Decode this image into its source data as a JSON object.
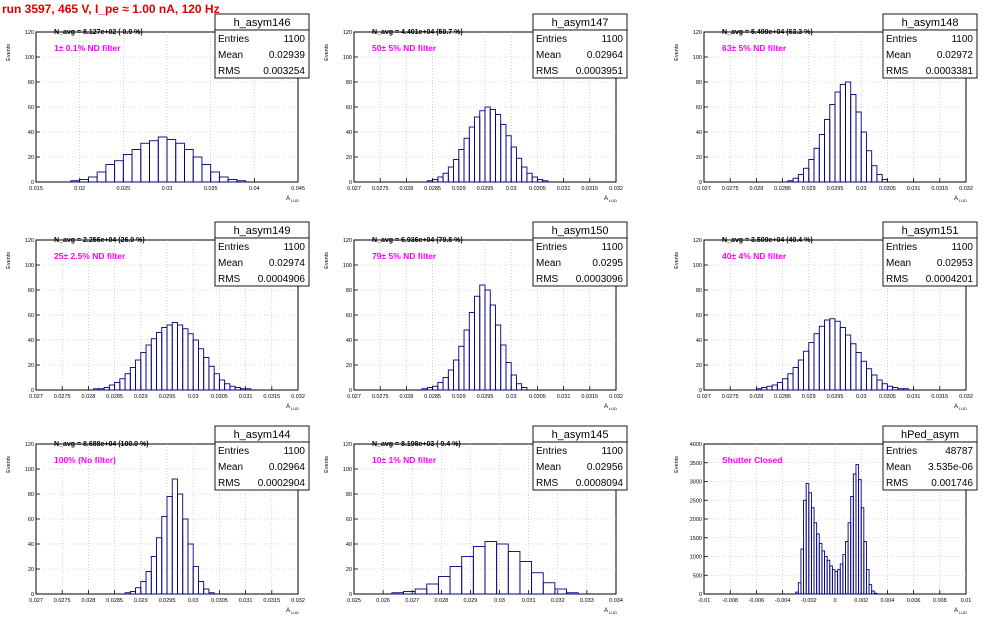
{
  "header": {
    "run_title": "run 3597,   465 V, I_pe ≈ 1.00 nA, 120 Hz"
  },
  "stats_labels": {
    "entries": "Entries",
    "mean": "Mean",
    "rms": "RMS"
  },
  "y_axis_title": "Events",
  "x_axis_title": "A",
  "x_axis_subscript": "LUD",
  "colors": {
    "histogram": "#000080",
    "annotation": "#ff00ff",
    "grid": "#b4b4b4",
    "title_red": "#e00000"
  },
  "chart_data": [
    {
      "type": "bar",
      "name": "h_asym146",
      "entries": "1100",
      "mean": "0.02939",
      "rms": "0.003254",
      "navg": "N_avg = 8.127e+02 ( 0.9 %)",
      "filter": "1± 0.1% ND filter",
      "xlim": [
        0.015,
        0.045
      ],
      "ylim": [
        0,
        120
      ],
      "xticks": [
        "0.015",
        "0.02",
        "0.025",
        "0.03",
        "0.035",
        "0.04",
        "0.045"
      ],
      "yticks": [
        "0",
        "20",
        "40",
        "60",
        "80",
        "100",
        "120"
      ],
      "bin_centers": [
        0.0155,
        0.0165,
        0.0175,
        0.0185,
        0.0195,
        0.0205,
        0.0215,
        0.0225,
        0.0235,
        0.0245,
        0.0255,
        0.0265,
        0.0275,
        0.0285,
        0.0295,
        0.0305,
        0.0315,
        0.0325,
        0.0335,
        0.0345,
        0.0355,
        0.0365,
        0.0375,
        0.0385,
        0.0395,
        0.0405,
        0.0415,
        0.0425,
        0.0435,
        0.0445
      ],
      "bin_values": [
        0,
        0,
        0,
        0,
        1,
        2,
        4,
        8,
        14,
        17,
        22,
        26,
        31,
        33,
        36,
        34,
        31,
        26,
        20,
        14,
        8,
        4,
        2,
        1,
        0,
        0,
        0,
        0,
        0,
        0
      ]
    },
    {
      "type": "bar",
      "name": "h_asym147",
      "entries": "1100",
      "mean": "0.02964",
      "rms": "0.0003951",
      "navg": "N_avg = 4.401e+04 (50.7 %)",
      "filter": "50± 5% ND filter",
      "xlim": [
        0.027,
        0.032
      ],
      "ylim": [
        0,
        120
      ],
      "xticks": [
        "0.027",
        "0.0275",
        "0.028",
        "0.0285",
        "0.029",
        "0.0295",
        "0.03",
        "0.0305",
        "0.031",
        "0.0315",
        "0.032"
      ],
      "yticks": [
        "0",
        "20",
        "40",
        "60",
        "80",
        "100",
        "120"
      ],
      "bin_centers": [
        0.02845,
        0.02855,
        0.02865,
        0.02875,
        0.02885,
        0.02895,
        0.02905,
        0.02915,
        0.02925,
        0.02935,
        0.02945,
        0.02955,
        0.02965,
        0.02975,
        0.02985,
        0.02995,
        0.03005,
        0.03015,
        0.03025,
        0.03035,
        0.03045,
        0.03055,
        0.03065
      ],
      "bin_values": [
        1,
        2,
        4,
        7,
        12,
        18,
        26,
        35,
        44,
        52,
        57,
        60,
        58,
        54,
        46,
        37,
        28,
        19,
        12,
        7,
        4,
        2,
        1
      ]
    },
    {
      "type": "bar",
      "name": "h_asym148",
      "entries": "1100",
      "mean": "0.02972",
      "rms": "0.0003381",
      "navg": "N_avg = 5.499e+04 (63.3 %)",
      "filter": "63± 5% ND filter",
      "xlim": [
        0.027,
        0.032
      ],
      "ylim": [
        0,
        120
      ],
      "xticks": [
        "0.027",
        "0.0275",
        "0.028",
        "0.0285",
        "0.029",
        "0.0295",
        "0.03",
        "0.0305",
        "0.031",
        "0.0315",
        "0.032"
      ],
      "yticks": [
        "0",
        "20",
        "40",
        "60",
        "80",
        "100",
        "120"
      ],
      "bin_centers": [
        0.02865,
        0.02875,
        0.02885,
        0.02895,
        0.02905,
        0.02915,
        0.02925,
        0.02935,
        0.02945,
        0.02955,
        0.02965,
        0.02975,
        0.02985,
        0.02995,
        0.03005,
        0.03015,
        0.03025,
        0.03035,
        0.03045
      ],
      "bin_values": [
        1,
        3,
        6,
        11,
        18,
        27,
        38,
        50,
        62,
        72,
        78,
        80,
        70,
        56,
        40,
        25,
        13,
        6,
        2
      ]
    },
    {
      "type": "bar",
      "name": "h_asym149",
      "entries": "1100",
      "mean": "0.02974",
      "rms": "0.0004906",
      "navg": "N_avg = 2.256e+04 (26.0 %)",
      "filter": "25± 2.5% ND filter",
      "xlim": [
        0.027,
        0.032
      ],
      "ylim": [
        0,
        120
      ],
      "xticks": [
        "0.027",
        "0.0275",
        "0.028",
        "0.0285",
        "0.029",
        "0.0295",
        "0.03",
        "0.0305",
        "0.031",
        "0.0315",
        "0.032"
      ],
      "yticks": [
        "0",
        "20",
        "40",
        "60",
        "80",
        "100",
        "120"
      ],
      "bin_centers": [
        0.02815,
        0.02825,
        0.02835,
        0.02845,
        0.02855,
        0.02865,
        0.02875,
        0.02885,
        0.02895,
        0.02905,
        0.02915,
        0.02925,
        0.02935,
        0.02945,
        0.02955,
        0.02965,
        0.02975,
        0.02985,
        0.02995,
        0.03005,
        0.03015,
        0.03025,
        0.03035,
        0.03045,
        0.03055,
        0.03065,
        0.03075,
        0.03085,
        0.03095,
        0.03105,
        0.03115
      ],
      "bin_values": [
        1,
        1,
        2,
        4,
        6,
        9,
        13,
        18,
        24,
        30,
        36,
        41,
        46,
        50,
        52,
        54,
        52,
        49,
        45,
        40,
        33,
        26,
        19,
        13,
        8,
        5,
        3,
        2,
        1,
        1,
        0
      ]
    },
    {
      "type": "bar",
      "name": "h_asym150",
      "entries": "1100",
      "mean": "0.0295",
      "rms": "0.0003096",
      "navg": "N_avg = 6.936e+04 (79.8 %)",
      "filter": "79± 5% ND filter",
      "xlim": [
        0.027,
        0.032
      ],
      "ylim": [
        0,
        120
      ],
      "xticks": [
        "0.027",
        "0.0275",
        "0.028",
        "0.0285",
        "0.029",
        "0.0295",
        "0.03",
        "0.0305",
        "0.031",
        "0.0315",
        "0.032"
      ],
      "yticks": [
        "0",
        "20",
        "40",
        "60",
        "80",
        "100",
        "120"
      ],
      "bin_centers": [
        0.02835,
        0.02845,
        0.02855,
        0.02865,
        0.02875,
        0.02885,
        0.02895,
        0.02905,
        0.02915,
        0.02925,
        0.02935,
        0.02945,
        0.02955,
        0.02965,
        0.02975,
        0.02985,
        0.02995,
        0.03005,
        0.03015,
        0.03025
      ],
      "bin_values": [
        1,
        2,
        3,
        6,
        10,
        16,
        24,
        35,
        48,
        62,
        75,
        84,
        80,
        68,
        52,
        36,
        22,
        12,
        5,
        2
      ]
    },
    {
      "type": "bar",
      "name": "h_asym151",
      "entries": "1100",
      "mean": "0.02953",
      "rms": "0.0004201",
      "navg": "N_avg = 3.509e+04 (40.4 %)",
      "filter": "40± 4% ND filter",
      "xlim": [
        0.027,
        0.032
      ],
      "ylim": [
        0,
        120
      ],
      "xticks": [
        "0.027",
        "0.0275",
        "0.028",
        "0.0285",
        "0.029",
        "0.0295",
        "0.03",
        "0.0305",
        "0.031",
        "0.0315",
        "0.032"
      ],
      "yticks": [
        "0",
        "20",
        "40",
        "60",
        "80",
        "100",
        "120"
      ],
      "bin_centers": [
        0.02805,
        0.02815,
        0.02825,
        0.02835,
        0.02845,
        0.02855,
        0.02865,
        0.02875,
        0.02885,
        0.02895,
        0.02905,
        0.02915,
        0.02925,
        0.02935,
        0.02945,
        0.02955,
        0.02965,
        0.02975,
        0.02985,
        0.02995,
        0.03005,
        0.03015,
        0.03025,
        0.03035,
        0.03045,
        0.03055,
        0.03065,
        0.03075,
        0.03085
      ],
      "bin_values": [
        1,
        2,
        3,
        4,
        6,
        9,
        13,
        18,
        24,
        31,
        38,
        45,
        51,
        56,
        57,
        55,
        50,
        44,
        37,
        30,
        23,
        17,
        12,
        8,
        5,
        3,
        2,
        1,
        1
      ]
    },
    {
      "type": "bar",
      "name": "h_asym144",
      "entries": "1100",
      "mean": "0.02964",
      "rms": "0.0002904",
      "navg": "N_avg = 8.688e+04 (100.0 %)",
      "filter": "100% (No filter)",
      "xlim": [
        0.027,
        0.032
      ],
      "ylim": [
        0,
        120
      ],
      "xticks": [
        "0.027",
        "0.0275",
        "0.028",
        "0.0285",
        "0.029",
        "0.0295",
        "0.03",
        "0.0305",
        "0.031",
        "0.0315",
        "0.032"
      ],
      "yticks": [
        "0",
        "20",
        "40",
        "60",
        "80",
        "100",
        "120"
      ],
      "bin_centers": [
        0.02875,
        0.02885,
        0.02895,
        0.02905,
        0.02915,
        0.02925,
        0.02935,
        0.02945,
        0.02955,
        0.02965,
        0.02975,
        0.02985,
        0.02995,
        0.03005,
        0.03015,
        0.03025,
        0.03035
      ],
      "bin_values": [
        1,
        2,
        5,
        10,
        18,
        30,
        45,
        62,
        78,
        92,
        80,
        60,
        40,
        22,
        10,
        4,
        1
      ]
    },
    {
      "type": "bar",
      "name": "h_asym145",
      "entries": "1100",
      "mean": "0.02956",
      "rms": "0.0008094",
      "navg": "N_avg = 8.198e+03 ( 9.4 %)",
      "filter": "10± 1% ND filter",
      "xlim": [
        0.025,
        0.034
      ],
      "ylim": [
        0,
        120
      ],
      "xticks": [
        "0.025",
        "0.026",
        "0.027",
        "0.028",
        "0.029",
        "0.03",
        "0.031",
        "0.032",
        "0.033",
        "0.034"
      ],
      "yticks": [
        "0",
        "20",
        "40",
        "60",
        "80",
        "100",
        "120"
      ],
      "bin_centers": [
        0.0265,
        0.0269,
        0.0273,
        0.0277,
        0.0281,
        0.0285,
        0.0289,
        0.0293,
        0.0297,
        0.0301,
        0.0305,
        0.0309,
        0.0313,
        0.0317,
        0.0321,
        0.0325
      ],
      "bin_values": [
        1,
        2,
        4,
        8,
        14,
        22,
        30,
        38,
        42,
        40,
        34,
        26,
        17,
        9,
        4,
        1
      ]
    },
    {
      "type": "bar",
      "name": "hPed_asym",
      "entries": "48787",
      "mean": "3.535e-06",
      "rms": "0.001746",
      "navg": "",
      "filter": "Shutter Closed",
      "xlim": [
        -0.01,
        0.01
      ],
      "ylim": [
        0,
        4000
      ],
      "xticks": [
        "-0.01",
        "-0.008",
        "-0.006",
        "-0.004",
        "-0.002",
        "0",
        "0.002",
        "0.004",
        "0.006",
        "0.008",
        "0.01"
      ],
      "yticks": [
        "0",
        "500",
        "1000",
        "1500",
        "2000",
        "2500",
        "3000",
        "3500",
        "4000"
      ],
      "bin_centers": [
        -0.0029,
        -0.0027,
        -0.0025,
        -0.0023,
        -0.0021,
        -0.0019,
        -0.0017,
        -0.0015,
        -0.0013,
        -0.0011,
        -0.0009,
        -0.0007,
        -0.0005,
        -0.0003,
        -0.0001,
        0.0001,
        0.0003,
        0.0005,
        0.0007,
        0.0009,
        0.0011,
        0.0013,
        0.0015,
        0.0017,
        0.0019,
        0.0021,
        0.0023,
        0.0025,
        0.0027,
        0.0029,
        0.0031
      ],
      "bin_values": [
        50,
        300,
        1200,
        2500,
        2950,
        2700,
        2300,
        1900,
        1600,
        1350,
        1150,
        1000,
        900,
        750,
        650,
        600,
        650,
        800,
        1050,
        1400,
        1900,
        2600,
        3200,
        3450,
        3050,
        2300,
        1400,
        650,
        250,
        80,
        20
      ]
    }
  ]
}
